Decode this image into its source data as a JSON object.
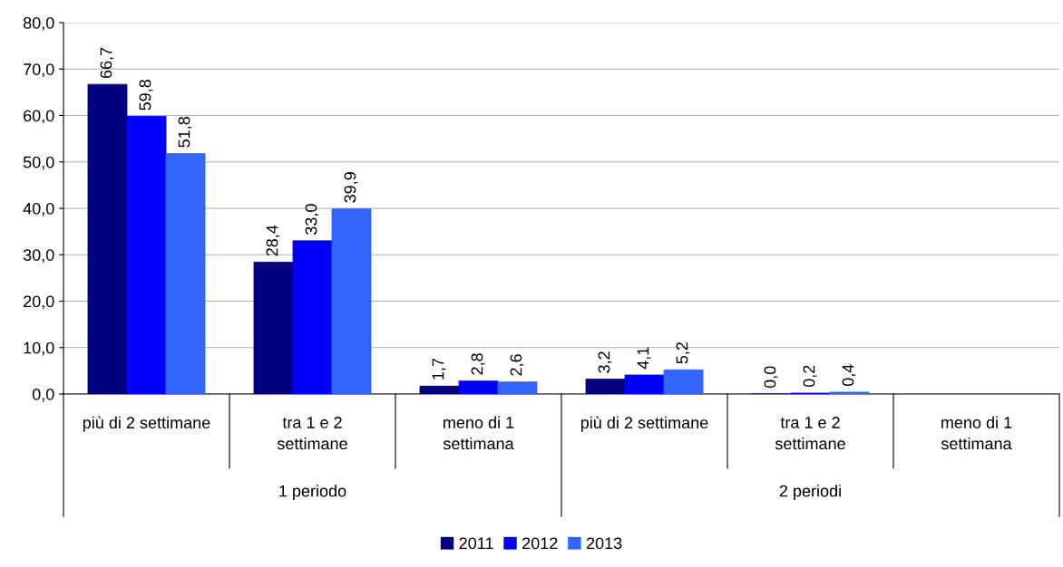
{
  "chart_data": {
    "type": "bar",
    "categories": [
      "più di 2 settimane",
      "tra 1 e 2\nsettimane",
      "meno di 1\nsettimana",
      "più di 2 settimane",
      "tra 1 e 2\nsettimane",
      "meno di 1\nsettimana"
    ],
    "annotations": [
      "1 periodo",
      "2 periodi"
    ],
    "series": [
      {
        "name": "2011",
        "color": "#000080",
        "values": [
          66.7,
          28.4,
          1.7,
          3.2,
          0.0,
          null
        ],
        "value_labels": [
          "66,7",
          "28,4",
          "1,7",
          "3,2",
          "0,0",
          null
        ]
      },
      {
        "name": "2012",
        "color": "#0000ff",
        "values": [
          59.8,
          33.0,
          2.8,
          4.1,
          0.2,
          null
        ],
        "value_labels": [
          "59,8",
          "33,0",
          "2,8",
          "4,1",
          "0,2",
          null
        ]
      },
      {
        "name": "2013",
        "color": "#3366ff",
        "values": [
          51.8,
          39.9,
          2.6,
          5.2,
          0.4,
          null
        ],
        "value_labels": [
          "51,8",
          "39,9",
          "2,6",
          "5,2",
          "0,4",
          null
        ]
      }
    ],
    "ylim": [
      0,
      80
    ],
    "yticks": [
      {
        "value": 0,
        "label": "0,0"
      },
      {
        "value": 10,
        "label": "10,0"
      },
      {
        "value": 20,
        "label": "20,0"
      },
      {
        "value": 30,
        "label": "30,0"
      },
      {
        "value": 40,
        "label": "40,0"
      },
      {
        "value": 50,
        "label": "50,0"
      },
      {
        "value": 60,
        "label": "60,0"
      },
      {
        "value": 70,
        "label": "70,0"
      },
      {
        "value": 80,
        "label": "80,0"
      }
    ],
    "grid": "y",
    "legend": "bottom"
  }
}
